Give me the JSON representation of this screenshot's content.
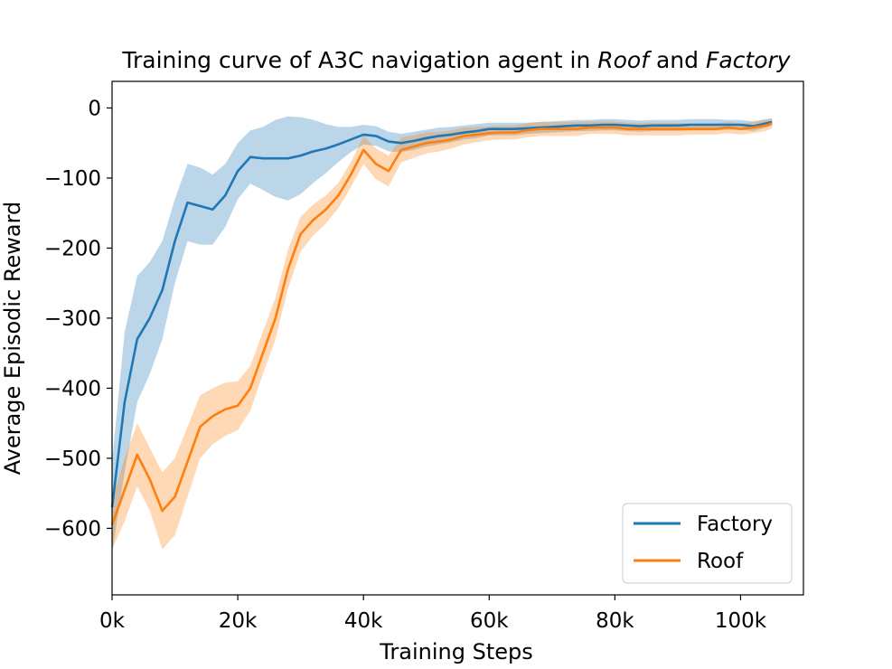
{
  "chart_data": {
    "type": "line",
    "title": {
      "prefix": "Training curve of A3C navigation agent in ",
      "italic_1": "Roof",
      "middle": " and ",
      "italic_2": "Factory"
    },
    "xlabel": "Training Steps",
    "ylabel": "Average Episodic Reward",
    "xlim": [
      0,
      110000
    ],
    "ylim": [
      -695,
      38
    ],
    "x_ticks": [
      0,
      20000,
      40000,
      60000,
      80000,
      100000
    ],
    "x_tick_labels": [
      "0k",
      "20k",
      "40k",
      "60k",
      "80k",
      "100k"
    ],
    "y_ticks": [
      0,
      -100,
      -200,
      -300,
      -400,
      -500,
      -600
    ],
    "y_tick_labels": [
      "0",
      "−100",
      "−200",
      "−300",
      "−400",
      "−500",
      "−600"
    ],
    "grid": false,
    "legend_position": "bottom-right",
    "series": [
      {
        "name": "Factory",
        "color": "#1f77b4",
        "x": [
          0,
          2000,
          4000,
          6000,
          8000,
          10000,
          12000,
          14000,
          16000,
          18000,
          20000,
          22000,
          24000,
          26000,
          28000,
          30000,
          32000,
          34000,
          36000,
          38000,
          40000,
          42000,
          44000,
          46000,
          48000,
          50000,
          52000,
          54000,
          56000,
          58000,
          60000,
          62000,
          64000,
          66000,
          68000,
          70000,
          72000,
          74000,
          76000,
          78000,
          80000,
          82000,
          84000,
          86000,
          88000,
          90000,
          92000,
          94000,
          96000,
          98000,
          100000,
          102000,
          104000,
          105000
        ],
        "y": [
          -570,
          -420,
          -330,
          -300,
          -260,
          -190,
          -135,
          -140,
          -145,
          -125,
          -90,
          -70,
          -72,
          -72,
          -72,
          -68,
          -62,
          -58,
          -52,
          -45,
          -38,
          -40,
          -48,
          -50,
          -47,
          -43,
          -40,
          -38,
          -35,
          -33,
          -30,
          -30,
          -30,
          -29,
          -28,
          -27,
          -26,
          -25,
          -25,
          -24,
          -24,
          -25,
          -26,
          -25,
          -25,
          -25,
          -24,
          -24,
          -24,
          -24,
          -24,
          -26,
          -22,
          -20
        ],
        "band": [
          65,
          100,
          90,
          80,
          70,
          60,
          55,
          55,
          50,
          45,
          40,
          38,
          45,
          55,
          60,
          55,
          45,
          35,
          25,
          18,
          14,
          14,
          14,
          13,
          13,
          12,
          12,
          11,
          10,
          10,
          9,
          9,
          9,
          8,
          8,
          8,
          8,
          8,
          8,
          8,
          8,
          8,
          8,
          8,
          8,
          8,
          8,
          8,
          8,
          7,
          7,
          7,
          6,
          5
        ]
      },
      {
        "name": "Roof",
        "color": "#ff7f0e",
        "x": [
          0,
          2000,
          4000,
          6000,
          8000,
          10000,
          12000,
          14000,
          16000,
          18000,
          20000,
          22000,
          24000,
          26000,
          28000,
          30000,
          32000,
          34000,
          36000,
          38000,
          40000,
          42000,
          44000,
          46000,
          48000,
          50000,
          52000,
          54000,
          56000,
          58000,
          60000,
          62000,
          64000,
          66000,
          68000,
          70000,
          72000,
          74000,
          76000,
          78000,
          80000,
          82000,
          84000,
          86000,
          88000,
          90000,
          92000,
          94000,
          96000,
          98000,
          100000,
          102000,
          104000,
          105000
        ],
        "y": [
          -595,
          -545,
          -495,
          -530,
          -575,
          -555,
          -505,
          -455,
          -440,
          -430,
          -425,
          -400,
          -350,
          -300,
          -230,
          -180,
          -160,
          -145,
          -125,
          -95,
          -60,
          -80,
          -90,
          -60,
          -55,
          -50,
          -48,
          -45,
          -40,
          -38,
          -36,
          -35,
          -35,
          -32,
          -30,
          -30,
          -30,
          -30,
          -28,
          -28,
          -28,
          -30,
          -30,
          -30,
          -30,
          -30,
          -30,
          -30,
          -30,
          -28,
          -30,
          -28,
          -25,
          -22
        ],
        "band": [
          35,
          45,
          45,
          45,
          55,
          55,
          50,
          45,
          40,
          38,
          35,
          32,
          30,
          30,
          28,
          25,
          22,
          20,
          18,
          18,
          20,
          22,
          22,
          18,
          16,
          15,
          14,
          13,
          12,
          11,
          10,
          10,
          10,
          10,
          10,
          10,
          10,
          10,
          9,
          9,
          9,
          9,
          9,
          9,
          9,
          9,
          8,
          8,
          8,
          8,
          8,
          8,
          8,
          7
        ]
      }
    ]
  }
}
